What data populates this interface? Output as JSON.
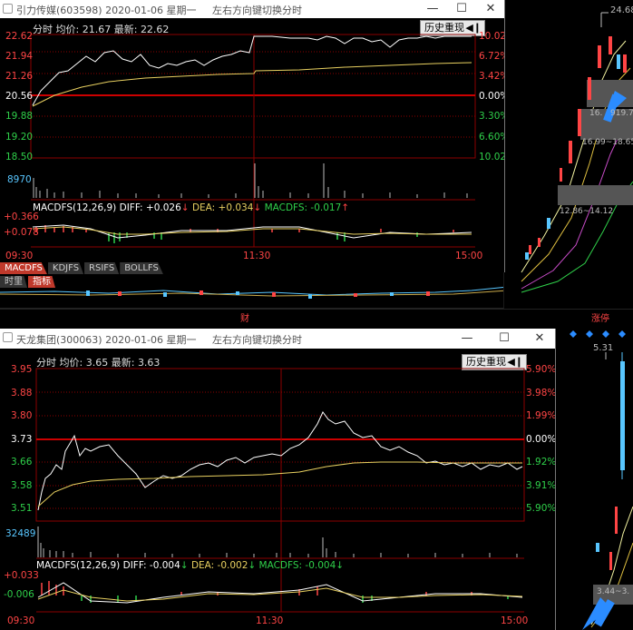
{
  "window1": {
    "title": "引力传媒(603598)  2020-01-06 星期一",
    "hint": "左右方向键切换分时",
    "info_mode": "分时",
    "info_avg_label": "均价:",
    "info_avg": "21.67",
    "info_last_label": "最新:",
    "info_last": "22.62",
    "history_button": "历史重现",
    "price_ticks": [
      "22.62",
      "21.94",
      "21.26",
      "20.56",
      "19.88",
      "19.20",
      "18.50"
    ],
    "pct_ticks": [
      "10.02%",
      "6.72%",
      "3.42%",
      "0.00%",
      "3.30%",
      "6.60%",
      "10.02%"
    ],
    "volume_label": "8970",
    "macd_line": {
      "name": "MACDFS(12,26,9)",
      "diff": "DIFF: +0.026",
      "dea": "DEA: +0.034",
      "macdfs": "MACDFS: -0.017"
    },
    "macd_ticks": [
      "+0.366",
      "+0.078"
    ],
    "time_ticks": [
      "09:30",
      "11:30",
      "15:00"
    ],
    "tabs": [
      "MACDFS",
      "KDJFS",
      "RSIFS",
      "BOLLFS"
    ],
    "bottom_tabs": [
      "时里",
      "指标"
    ]
  },
  "window2": {
    "title": "天龙集团(300063)  2020-01-06 星期一",
    "hint": "左右方向键切换分时",
    "info_mode": "分时",
    "info_avg_label": "均价:",
    "info_avg": "3.65",
    "info_last_label": "最新:",
    "info_last": "3.63",
    "history_button": "历史重现",
    "price_ticks": [
      "3.95",
      "3.88",
      "3.80",
      "3.73",
      "3.66",
      "3.58",
      "3.51"
    ],
    "pct_ticks": [
      "5.90%",
      "3.98%",
      "1.99%",
      "0.00%",
      "1.92%",
      "3.91%",
      "5.90%"
    ],
    "volume_label": "32489",
    "macd_line": {
      "name": "MACDFS(12,26,9)",
      "diff": "DIFF: -0.004",
      "dea": "DEA: -0.002",
      "macdfs": "MACDFS: -0.004"
    },
    "macd_ticks": [
      "+0.033",
      "-0.006"
    ],
    "time_ticks": [
      "09:30",
      "11:30",
      "15:00"
    ]
  },
  "right_panel_top": {
    "high_label": "24.68",
    "zone_labels": [
      "16.",
      "919.7",
      "16.99~18.65",
      "12.86~14.12"
    ],
    "bottom_label": "涨停"
  },
  "right_panel_bottom": {
    "high_label": "5.31",
    "zone_label": "3.44~3."
  },
  "background_label": "财",
  "colors": {
    "up": "#ff4545",
    "down": "#2fd04a",
    "accent": "#2b8cff",
    "grid": "#8b0000"
  }
}
